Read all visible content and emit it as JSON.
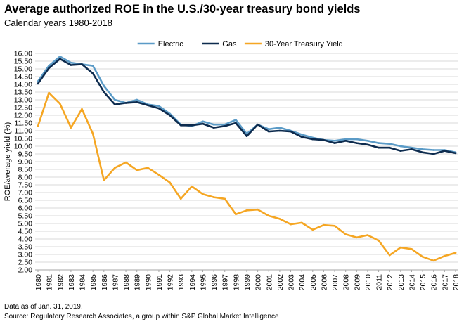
{
  "title": "Average authorized ROE in the U.S./30-year treasury bond yields",
  "subtitle": "Calendar years 1980-2018",
  "footnotes": [
    "Data as of Jan. 31, 2019.",
    "Source: Regulatory Research Associates, a group within S&P Global Market Intelligence"
  ],
  "chart_data": {
    "type": "line",
    "ylabel": "ROE/average yield (%)",
    "xlabel": "",
    "ylim": [
      2.0,
      16.0
    ],
    "ytick_step": 0.5,
    "ytick_labels": [
      "2.00",
      "2.50",
      "3.00",
      "3.50",
      "4.00",
      "4.50",
      "5.00",
      "5.50",
      "6.00",
      "6.50",
      "7.00",
      "7.50",
      "8.00",
      "8.50",
      "9.00",
      "9.50",
      "10.00",
      "10.50",
      "11.00",
      "11.50",
      "12.00",
      "12.50",
      "13.00",
      "13.50",
      "14.00",
      "14.50",
      "15.00",
      "15.50",
      "16.00"
    ],
    "grid": true,
    "legend": "top-center",
    "categories": [
      "1980",
      "1981",
      "1982",
      "1983",
      "1984",
      "1985",
      "1986",
      "1987",
      "1988",
      "1989",
      "1990",
      "1991",
      "1992",
      "1993",
      "1994",
      "1995",
      "1996",
      "1997",
      "1998",
      "1999",
      "2000",
      "2001",
      "2002",
      "2003",
      "2004",
      "2005",
      "2006",
      "2007",
      "2008",
      "2009",
      "2010",
      "2011",
      "2012",
      "2013",
      "2014",
      "2015",
      "2016",
      "2017",
      "2018"
    ],
    "series": [
      {
        "name": "Electric",
        "color": "#5b9bc7",
        "values": [
          14.2,
          15.2,
          15.8,
          15.4,
          15.3,
          15.2,
          13.9,
          13.0,
          12.8,
          13.0,
          12.7,
          12.6,
          12.1,
          11.4,
          11.3,
          11.6,
          11.4,
          11.4,
          11.7,
          10.8,
          11.4,
          11.1,
          11.2,
          11.0,
          10.75,
          10.55,
          10.4,
          10.35,
          10.45,
          10.45,
          10.35,
          10.2,
          10.15,
          10.0,
          9.9,
          9.8,
          9.75,
          9.75,
          9.6
        ]
      },
      {
        "name": "Gas",
        "color": "#0d2b4e",
        "values": [
          14.05,
          15.05,
          15.65,
          15.25,
          15.3,
          14.7,
          13.5,
          12.7,
          12.8,
          12.85,
          12.65,
          12.45,
          12.0,
          11.35,
          11.35,
          11.45,
          11.2,
          11.3,
          11.5,
          10.65,
          11.4,
          10.95,
          11.0,
          10.95,
          10.6,
          10.45,
          10.4,
          10.2,
          10.35,
          10.2,
          10.1,
          9.9,
          9.9,
          9.7,
          9.8,
          9.6,
          9.5,
          9.7,
          9.55
        ]
      },
      {
        "name": "30-Year Treasury Yield",
        "color": "#f5a623",
        "values": [
          11.3,
          13.45,
          12.75,
          11.2,
          12.4,
          10.8,
          7.8,
          8.6,
          8.95,
          8.45,
          8.6,
          8.15,
          7.65,
          6.6,
          7.4,
          6.9,
          6.7,
          6.6,
          5.6,
          5.85,
          5.9,
          5.5,
          5.3,
          4.95,
          5.05,
          4.6,
          4.9,
          4.85,
          4.3,
          4.1,
          4.25,
          3.9,
          2.95,
          3.45,
          3.35,
          2.85,
          2.6,
          2.9,
          3.1
        ]
      }
    ]
  }
}
